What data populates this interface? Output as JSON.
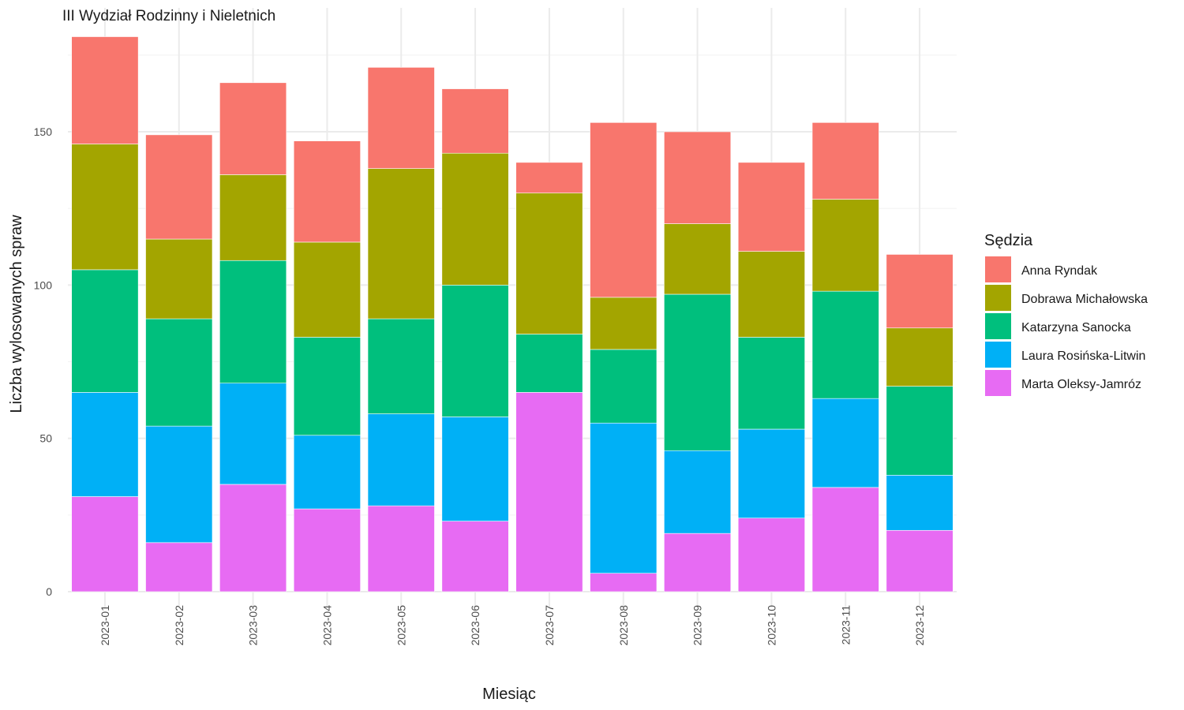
{
  "chart_data": {
    "type": "bar",
    "stacked": true,
    "title": "III Wydział Rodzinny i Nieletnich",
    "xlabel": "Miesiąc",
    "ylabel": "Liczba wylosowanych spraw",
    "ylim": [
      0,
      181
    ],
    "yticks": [
      "0",
      "50",
      "100",
      "150"
    ],
    "grid": true,
    "legend_position": "right",
    "legend_title": "Sędzia",
    "categories": [
      "2023-01",
      "2023-02",
      "2023-03",
      "2023-04",
      "2023-05",
      "2023-06",
      "2023-07",
      "2023-08",
      "2023-09",
      "2023-10",
      "2023-11",
      "2023-12"
    ],
    "series": [
      {
        "name": "Marta Oleksy-Jamróz",
        "color": "#E76BF3",
        "values": [
          31,
          16,
          35,
          27,
          28,
          23,
          65,
          6,
          19,
          24,
          34,
          20
        ]
      },
      {
        "name": "Laura Rosińska-Litwin",
        "color": "#00B0F6",
        "values": [
          34,
          38,
          33,
          24,
          30,
          34,
          0,
          49,
          27,
          29,
          29,
          18
        ]
      },
      {
        "name": "Katarzyna Sanocka",
        "color": "#00BF7D",
        "values": [
          40,
          35,
          40,
          32,
          31,
          43,
          19,
          24,
          51,
          30,
          35,
          29
        ]
      },
      {
        "name": "Dobrawa Michałowska",
        "color": "#A3A500",
        "values": [
          41,
          26,
          28,
          31,
          49,
          43,
          46,
          17,
          23,
          28,
          30,
          19
        ]
      },
      {
        "name": "Anna Ryndak",
        "color": "#F8766D",
        "values": [
          35,
          34,
          30,
          33,
          33,
          21,
          10,
          57,
          30,
          29,
          25,
          24
        ]
      }
    ],
    "legend_order": [
      "Anna Ryndak",
      "Dobrawa Michałowska",
      "Katarzyna Sanocka",
      "Laura Rosińska-Litwin",
      "Marta Oleksy-Jamróz"
    ]
  }
}
